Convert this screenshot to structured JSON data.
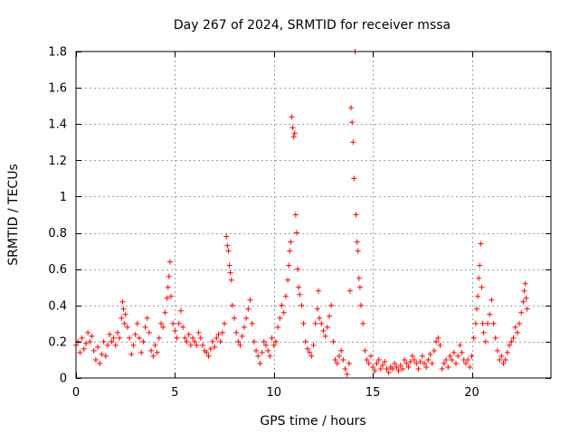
{
  "chart_data": {
    "type": "scatter",
    "title": "Day 267 of 2024, SRMTID for receiver mssa",
    "xlabel": "GPS time / hours",
    "ylabel": "SRMTID / TECUs",
    "xlim": [
      0,
      24
    ],
    "ylim": [
      0,
      1.8
    ],
    "x_ticks": [
      0,
      5,
      10,
      15,
      20
    ],
    "x_tick_labels": [
      "0",
      "5",
      "10",
      "15",
      "20"
    ],
    "y_ticks": [
      0,
      0.2,
      0.4,
      0.6,
      0.8,
      1.0,
      1.2,
      1.4,
      1.6,
      1.8
    ],
    "y_tick_labels": [
      "0",
      "0.2",
      "0.4",
      "0.6",
      "0.8",
      "1",
      "1.2",
      "1.4",
      "1.6",
      "1.8"
    ],
    "grid": true,
    "marker": "+",
    "series": [
      {
        "name": "SRMTID",
        "color": "#ff0000",
        "points": [
          [
            0.0,
            0.18
          ],
          [
            0.1,
            0.2
          ],
          [
            0.2,
            0.14
          ],
          [
            0.3,
            0.22
          ],
          [
            0.4,
            0.16
          ],
          [
            0.5,
            0.19
          ],
          [
            0.6,
            0.25
          ],
          [
            0.7,
            0.2
          ],
          [
            0.8,
            0.23
          ],
          [
            0.9,
            0.15
          ],
          [
            1.0,
            0.1
          ],
          [
            1.1,
            0.17
          ],
          [
            1.2,
            0.08
          ],
          [
            1.3,
            0.13
          ],
          [
            1.4,
            0.2
          ],
          [
            1.5,
            0.12
          ],
          [
            1.6,
            0.18
          ],
          [
            1.7,
            0.24
          ],
          [
            1.8,
            0.2
          ],
          [
            1.9,
            0.22
          ],
          [
            2.0,
            0.18
          ],
          [
            2.1,
            0.25
          ],
          [
            2.2,
            0.22
          ],
          [
            2.3,
            0.33
          ],
          [
            2.35,
            0.42
          ],
          [
            2.4,
            0.38
          ],
          [
            2.45,
            0.3
          ],
          [
            2.5,
            0.35
          ],
          [
            2.6,
            0.28
          ],
          [
            2.7,
            0.22
          ],
          [
            2.8,
            0.13
          ],
          [
            2.9,
            0.18
          ],
          [
            3.0,
            0.24
          ],
          [
            3.1,
            0.3
          ],
          [
            3.2,
            0.22
          ],
          [
            3.3,
            0.14
          ],
          [
            3.4,
            0.2
          ],
          [
            3.5,
            0.28
          ],
          [
            3.6,
            0.33
          ],
          [
            3.7,
            0.25
          ],
          [
            3.8,
            0.15
          ],
          [
            3.9,
            0.12
          ],
          [
            4.0,
            0.18
          ],
          [
            4.1,
            0.14
          ],
          [
            4.2,
            0.22
          ],
          [
            4.3,
            0.3
          ],
          [
            4.4,
            0.28
          ],
          [
            4.5,
            0.36
          ],
          [
            4.6,
            0.44
          ],
          [
            4.65,
            0.5
          ],
          [
            4.7,
            0.56
          ],
          [
            4.75,
            0.64
          ],
          [
            4.8,
            0.45
          ],
          [
            4.9,
            0.3
          ],
          [
            5.0,
            0.26
          ],
          [
            5.1,
            0.22
          ],
          [
            5.2,
            0.3
          ],
          [
            5.3,
            0.37
          ],
          [
            5.4,
            0.28
          ],
          [
            5.5,
            0.22
          ],
          [
            5.6,
            0.2
          ],
          [
            5.7,
            0.24
          ],
          [
            5.8,
            0.18
          ],
          [
            5.9,
            0.22
          ],
          [
            6.0,
            0.2
          ],
          [
            6.1,
            0.18
          ],
          [
            6.2,
            0.25
          ],
          [
            6.3,
            0.22
          ],
          [
            6.4,
            0.18
          ],
          [
            6.5,
            0.15
          ],
          [
            6.6,
            0.14
          ],
          [
            6.7,
            0.12
          ],
          [
            6.8,
            0.16
          ],
          [
            6.9,
            0.2
          ],
          [
            7.0,
            0.17
          ],
          [
            7.1,
            0.22
          ],
          [
            7.2,
            0.24
          ],
          [
            7.3,
            0.2
          ],
          [
            7.4,
            0.25
          ],
          [
            7.5,
            0.3
          ],
          [
            7.6,
            0.78
          ],
          [
            7.65,
            0.73
          ],
          [
            7.7,
            0.7
          ],
          [
            7.75,
            0.62
          ],
          [
            7.8,
            0.58
          ],
          [
            7.85,
            0.54
          ],
          [
            7.9,
            0.4
          ],
          [
            8.0,
            0.33
          ],
          [
            8.1,
            0.25
          ],
          [
            8.2,
            0.2
          ],
          [
            8.3,
            0.18
          ],
          [
            8.4,
            0.23
          ],
          [
            8.5,
            0.28
          ],
          [
            8.6,
            0.33
          ],
          [
            8.7,
            0.38
          ],
          [
            8.8,
            0.43
          ],
          [
            8.9,
            0.3
          ],
          [
            9.0,
            0.2
          ],
          [
            9.1,
            0.15
          ],
          [
            9.2,
            0.12
          ],
          [
            9.3,
            0.08
          ],
          [
            9.4,
            0.14
          ],
          [
            9.5,
            0.2
          ],
          [
            9.6,
            0.18
          ],
          [
            9.7,
            0.15
          ],
          [
            9.8,
            0.12
          ],
          [
            9.9,
            0.22
          ],
          [
            10.0,
            0.18
          ],
          [
            10.1,
            0.2
          ],
          [
            10.2,
            0.28
          ],
          [
            10.3,
            0.33
          ],
          [
            10.4,
            0.4
          ],
          [
            10.5,
            0.36
          ],
          [
            10.6,
            0.45
          ],
          [
            10.7,
            0.54
          ],
          [
            10.75,
            0.62
          ],
          [
            10.8,
            0.7
          ],
          [
            10.85,
            0.75
          ],
          [
            10.9,
            1.44
          ],
          [
            10.95,
            1.38
          ],
          [
            11.0,
            1.33
          ],
          [
            11.05,
            1.35
          ],
          [
            11.1,
            0.9
          ],
          [
            11.15,
            0.8
          ],
          [
            11.2,
            0.6
          ],
          [
            11.25,
            0.5
          ],
          [
            11.3,
            0.46
          ],
          [
            11.4,
            0.4
          ],
          [
            11.5,
            0.3
          ],
          [
            11.6,
            0.2
          ],
          [
            11.7,
            0.16
          ],
          [
            11.8,
            0.14
          ],
          [
            11.9,
            0.12
          ],
          [
            12.0,
            0.18
          ],
          [
            12.1,
            0.3
          ],
          [
            12.2,
            0.38
          ],
          [
            12.25,
            0.48
          ],
          [
            12.3,
            0.33
          ],
          [
            12.4,
            0.3
          ],
          [
            12.5,
            0.26
          ],
          [
            12.6,
            0.23
          ],
          [
            12.7,
            0.28
          ],
          [
            12.8,
            0.34
          ],
          [
            12.9,
            0.4
          ],
          [
            13.0,
            0.2
          ],
          [
            13.1,
            0.1
          ],
          [
            13.2,
            0.08
          ],
          [
            13.3,
            0.12
          ],
          [
            13.4,
            0.15
          ],
          [
            13.5,
            0.1
          ],
          [
            13.6,
            0.05
          ],
          [
            13.7,
            0.02
          ],
          [
            13.8,
            0.08
          ],
          [
            13.85,
            0.48
          ],
          [
            13.9,
            1.49
          ],
          [
            13.95,
            1.41
          ],
          [
            14.0,
            1.3
          ],
          [
            14.05,
            1.1
          ],
          [
            14.1,
            1.8
          ],
          [
            14.15,
            0.9
          ],
          [
            14.2,
            0.75
          ],
          [
            14.25,
            0.7
          ],
          [
            14.3,
            0.55
          ],
          [
            14.35,
            0.5
          ],
          [
            14.4,
            0.4
          ],
          [
            14.5,
            0.3
          ],
          [
            14.6,
            0.15
          ],
          [
            14.7,
            0.1
          ],
          [
            14.8,
            0.08
          ],
          [
            14.9,
            0.12
          ],
          [
            15.0,
            0.06
          ],
          [
            15.1,
            0.04
          ],
          [
            15.2,
            0.08
          ],
          [
            15.3,
            0.1
          ],
          [
            15.4,
            0.05
          ],
          [
            15.5,
            0.07
          ],
          [
            15.6,
            0.09
          ],
          [
            15.7,
            0.05
          ],
          [
            15.8,
            0.03
          ],
          [
            15.9,
            0.06
          ],
          [
            16.0,
            0.05
          ],
          [
            16.1,
            0.08
          ],
          [
            16.2,
            0.06
          ],
          [
            16.3,
            0.04
          ],
          [
            16.4,
            0.07
          ],
          [
            16.5,
            0.05
          ],
          [
            16.6,
            0.1
          ],
          [
            16.7,
            0.08
          ],
          [
            16.8,
            0.06
          ],
          [
            16.9,
            0.09
          ],
          [
            17.0,
            0.12
          ],
          [
            17.1,
            0.1
          ],
          [
            17.2,
            0.08
          ],
          [
            17.3,
            0.05
          ],
          [
            17.4,
            0.09
          ],
          [
            17.5,
            0.12
          ],
          [
            17.6,
            0.08
          ],
          [
            17.7,
            0.06
          ],
          [
            17.8,
            0.1
          ],
          [
            17.9,
            0.13
          ],
          [
            18.0,
            0.08
          ],
          [
            18.1,
            0.15
          ],
          [
            18.2,
            0.2
          ],
          [
            18.3,
            0.22
          ],
          [
            18.4,
            0.18
          ],
          [
            18.5,
            0.05
          ],
          [
            18.6,
            0.08
          ],
          [
            18.7,
            0.1
          ],
          [
            18.8,
            0.06
          ],
          [
            18.9,
            0.12
          ],
          [
            19.0,
            0.1
          ],
          [
            19.1,
            0.14
          ],
          [
            19.2,
            0.08
          ],
          [
            19.3,
            0.12
          ],
          [
            19.4,
            0.18
          ],
          [
            19.5,
            0.14
          ],
          [
            19.6,
            0.1
          ],
          [
            19.7,
            0.08
          ],
          [
            19.8,
            0.1
          ],
          [
            19.9,
            0.06
          ],
          [
            20.0,
            0.12
          ],
          [
            20.1,
            0.22
          ],
          [
            20.2,
            0.3
          ],
          [
            20.25,
            0.38
          ],
          [
            20.3,
            0.45
          ],
          [
            20.35,
            0.55
          ],
          [
            20.4,
            0.62
          ],
          [
            20.45,
            0.74
          ],
          [
            20.5,
            0.5
          ],
          [
            20.55,
            0.3
          ],
          [
            20.6,
            0.25
          ],
          [
            20.7,
            0.2
          ],
          [
            20.8,
            0.3
          ],
          [
            20.9,
            0.35
          ],
          [
            21.0,
            0.43
          ],
          [
            21.1,
            0.3
          ],
          [
            21.2,
            0.22
          ],
          [
            21.3,
            0.15
          ],
          [
            21.4,
            0.1
          ],
          [
            21.5,
            0.12
          ],
          [
            21.6,
            0.08
          ],
          [
            21.7,
            0.1
          ],
          [
            21.8,
            0.14
          ],
          [
            21.9,
            0.18
          ],
          [
            22.0,
            0.2
          ],
          [
            22.1,
            0.22
          ],
          [
            22.2,
            0.28
          ],
          [
            22.3,
            0.25
          ],
          [
            22.4,
            0.3
          ],
          [
            22.5,
            0.36
          ],
          [
            22.6,
            0.42
          ],
          [
            22.65,
            0.48
          ],
          [
            22.7,
            0.52
          ],
          [
            22.75,
            0.44
          ],
          [
            22.8,
            0.38
          ]
        ]
      }
    ]
  }
}
